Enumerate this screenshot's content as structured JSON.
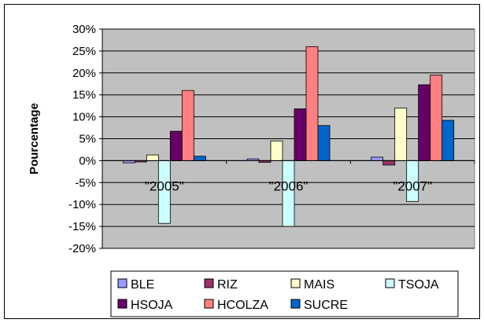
{
  "chart_data": {
    "type": "bar",
    "title": "",
    "xlabel": "",
    "ylabel": "Pourcentage",
    "categories": [
      "\"2005\"",
      "\"2006\"",
      "\"2007\""
    ],
    "ylim": [
      -0.2,
      0.3
    ],
    "ytick_values": [
      0.3,
      0.25,
      0.2,
      0.15,
      0.1,
      0.05,
      0.0,
      -0.05,
      -0.1,
      -0.15,
      -0.2
    ],
    "ytick_labels": [
      "30%",
      "25%",
      "20%",
      "15%",
      "10%",
      "5%",
      "0%",
      "-5%",
      "-10%",
      "-15%",
      "-20%"
    ],
    "grid": true,
    "legend_position": "bottom",
    "series": [
      {
        "name": "BLE",
        "color": "#9999FF",
        "values": [
          -0.005,
          0.004,
          0.008
        ]
      },
      {
        "name": "RIZ",
        "color": "#993366",
        "values": [
          -0.003,
          -0.004,
          -0.01
        ]
      },
      {
        "name": "MAIS",
        "color": "#FFFFCC",
        "values": [
          0.013,
          0.045,
          0.12
        ]
      },
      {
        "name": "TSOJA",
        "color": "#CCFFFF",
        "values": [
          -0.143,
          -0.15,
          -0.093
        ]
      },
      {
        "name": "HSOJA",
        "color": "#660066",
        "values": [
          0.067,
          0.118,
          0.173
        ]
      },
      {
        "name": "HCOLZA",
        "color": "#FF8080",
        "values": [
          0.16,
          0.26,
          0.195
        ]
      },
      {
        "name": "SUCRE",
        "color": "#0066CC",
        "values": [
          0.01,
          0.08,
          0.092
        ]
      }
    ],
    "colors": {
      "plot_background": "#C0C0C0",
      "gridline": "#000000",
      "bar_outline": "#000000"
    }
  }
}
